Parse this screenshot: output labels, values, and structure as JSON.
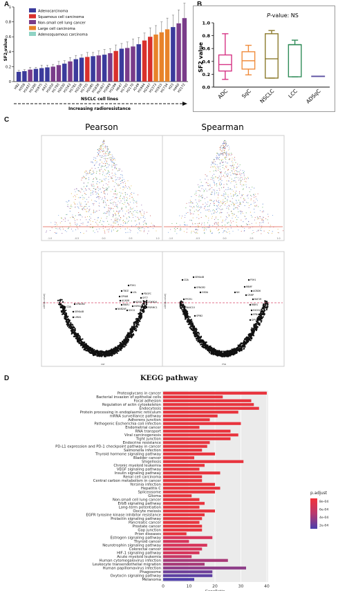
{
  "panels": {
    "a": "A",
    "b": "B",
    "c": "C",
    "d": "D"
  },
  "panel_a": {
    "ylabel": "SF2 value",
    "xlabel": "NSCLC cell lines",
    "arrow_label": "Increasing radioresistance",
    "ylim": [
      0,
      1.0
    ],
    "yticks": [
      "0",
      "0.2",
      "0.4",
      "0.6",
      "0.8",
      "1"
    ],
    "legend": [
      {
        "label": "Adenocarcinoma",
        "color": "#3b3b9c"
      },
      {
        "label": "Squamous cell carcinoma",
        "color": "#d9302c"
      },
      {
        "label": "Non-small cell lung cancer",
        "color": "#7a3c8a"
      },
      {
        "label": "Large cell carcinoma",
        "color": "#e8832a"
      },
      {
        "label": "Adenosquamous carcinoma",
        "color": "#8fd3c4"
      }
    ]
  },
  "chart_data": [
    {
      "type": "bar",
      "categories": [
        "H82",
        "H358",
        "H1437",
        "H1395",
        "H1975",
        "A427",
        "H1650",
        "H1793",
        "H2030",
        "H1563",
        "H1781",
        "H2228",
        "H1755",
        "H2085",
        "H1838",
        "Hcc827",
        "H1869",
        "H1299",
        "H647",
        "H1703",
        "H2170",
        "A549",
        "H1944",
        "H2347",
        "H1373",
        "H1915",
        "H1734",
        "H23",
        "H460",
        "H2172"
      ],
      "values": [
        0.13,
        0.14,
        0.16,
        0.17,
        0.18,
        0.19,
        0.2,
        0.22,
        0.24,
        0.27,
        0.3,
        0.32,
        0.33,
        0.34,
        0.35,
        0.36,
        0.38,
        0.41,
        0.44,
        0.45,
        0.47,
        0.5,
        0.55,
        0.6,
        0.63,
        0.66,
        0.7,
        0.73,
        0.78,
        0.85
      ],
      "errors": [
        0.02,
        0.02,
        0.03,
        0.02,
        0.04,
        0.03,
        0.03,
        0.05,
        0.04,
        0.05,
        0.05,
        0.04,
        0.06,
        0.05,
        0.06,
        0.07,
        0.06,
        0.08,
        0.07,
        0.08,
        0.1,
        0.09,
        0.1,
        0.12,
        0.12,
        0.14,
        0.15,
        0.16,
        0.18,
        0.2
      ],
      "colors": [
        "#3b3b9c",
        "#3b3b9c",
        "#7a3c8a",
        "#3b3b9c",
        "#3b3b9c",
        "#3b3b9c",
        "#7a3c8a",
        "#7a3c8a",
        "#3b3b9c",
        "#7a3c8a",
        "#3b3b9c",
        "#3b3b9c",
        "#d9302c",
        "#3b3b9c",
        "#7a3c8a",
        "#3b3b9c",
        "#7a3c8a",
        "#d9302c",
        "#3b3b9c",
        "#7a3c8a",
        "#7a3c8a",
        "#3b3b9c",
        "#d9302c",
        "#d9302c",
        "#e8832a",
        "#e8832a",
        "#e8832a",
        "#3b3b9c",
        "#7a3c8a",
        "#7a3c8a"
      ],
      "ylabel": "SF2 value",
      "xlabel": "NSCLC cell lines",
      "ylim": [
        0,
        1.0
      ]
    },
    {
      "type": "box",
      "title_prefix": "P",
      "title": "-value: NS",
      "ylabel": "SF2 value",
      "ylim": [
        0,
        1.0
      ],
      "yticks": [
        "0.0",
        "0.2",
        "0.4",
        "0.6",
        "0.8",
        "1.0"
      ],
      "categories": [
        "ADC",
        "SqC",
        "NSCLC",
        "LCC",
        "ADSqC"
      ],
      "colors": [
        "#d63384",
        "#f08c3c",
        "#8c7a2c",
        "#2e8b57",
        "#5b4fa0"
      ],
      "boxes": [
        {
          "min": 0.12,
          "q1": 0.25,
          "median": 0.35,
          "q3": 0.5,
          "max": 0.83
        },
        {
          "min": 0.19,
          "q1": 0.28,
          "median": 0.41,
          "q3": 0.55,
          "max": 0.65
        },
        {
          "min": 0.14,
          "q1": 0.14,
          "median": 0.44,
          "q3": 0.83,
          "max": 0.88
        },
        {
          "min": 0.16,
          "q1": 0.16,
          "median": 0.66,
          "q3": 0.66,
          "max": 0.73
        },
        {
          "min": 0.17,
          "q1": 0.17,
          "median": 0.17,
          "q3": 0.17,
          "max": 0.17
        }
      ]
    },
    {
      "type": "bar",
      "orientation": "horizontal",
      "title": "KEGG pathway",
      "xlabel": "GeneRatio",
      "xlim": [
        0,
        40
      ],
      "xticks": [
        "0",
        "10",
        "20",
        "30",
        "40"
      ],
      "legend_title": "p.adjust",
      "legend_ticks": [
        "8e-04",
        "6e-04",
        "4e-04",
        "2e-04"
      ],
      "categories": [
        "Proteoglycans in cancer",
        "Bacterial invasion of epithelial cells",
        "Focal adhesion",
        "Regulation of actin cytoskeleton",
        "Endocytosis",
        "Protein processing in endoplasmic reticulum",
        "mRNA surveillance pathway",
        "Adherens junction",
        "Pathogenic Escherichia coli infection",
        "Endometrial cancer",
        "RNA transport",
        "Viral carcinogenesis",
        "Tight junction",
        "Endocrine resistance",
        "PD-L1 expression and PD-1 checkpoint pathway in cancer",
        "Salmonella infection",
        "Thyroid hormone signaling pathway",
        "Bladder cancer",
        "Shigellosis",
        "Chronic myeloid leukemia",
        "VEGF signaling pathway",
        "Insulin signaling pathway",
        "Renal cell carcinoma",
        "Central carbon metabolism in cancer",
        "Yersinia infection",
        "Hepatitis C",
        "Spliceosome",
        "Glioma",
        "Non-small cell lung cancer",
        "ErbB signaling pathway",
        "Long-term potentiation",
        "Oocyte meiosis",
        "EGFR tyrosine kinase inhibitor resistance",
        "Prolactin signaling pathway",
        "Pancreatic cancer",
        "Prostate cancer",
        "Gap junction",
        "Prion diseases",
        "Estrogen signaling pathway",
        "Thyroid cancer",
        "Neurotrophin signaling pathway",
        "Colorectal cancer",
        "HIF-1 signaling pathway",
        "Acute myeloid leukemia",
        "Human cytomegalovirus infection",
        "Leukocyte transendothelial migration",
        "Human papillomavirus infection",
        "Phagosome",
        "Oxytocin signaling pathway",
        "Melanoma"
      ],
      "values": [
        40,
        23,
        34,
        35,
        37,
        29,
        21,
        18,
        30,
        14,
        26,
        29,
        26,
        18,
        17,
        15,
        20,
        12,
        31,
        16,
        14,
        22,
        15,
        15,
        20,
        22,
        20,
        11,
        14,
        16,
        14,
        20,
        16,
        15,
        14,
        15,
        15,
        9,
        19,
        10,
        17,
        15,
        14,
        11,
        25,
        16,
        32,
        19,
        19,
        12
      ],
      "colors": [
        "#e8333d",
        "#e8333d",
        "#e8333d",
        "#e8333d",
        "#e8333d",
        "#e8333d",
        "#e8333d",
        "#e8333d",
        "#e8333d",
        "#e8333d",
        "#e8333d",
        "#e8333d",
        "#e8333d",
        "#e8333d",
        "#e8333d",
        "#e8333d",
        "#e8333d",
        "#e8333d",
        "#e8333d",
        "#e8333d",
        "#e8333d",
        "#e8333d",
        "#e8333d",
        "#e8333d",
        "#e8333d",
        "#e8333d",
        "#e8333d",
        "#e8333d",
        "#e8333d",
        "#e8333d",
        "#e8333d",
        "#e8333d",
        "#e8333d",
        "#e8333d",
        "#e8333d",
        "#e8333d",
        "#e8333d",
        "#e8333d",
        "#d7345a",
        "#d7345a",
        "#d7345a",
        "#d7345a",
        "#d7345a",
        "#c73766",
        "#a83a78",
        "#a83a78",
        "#8d3d88",
        "#6f3f98",
        "#5d41a3",
        "#5040aa"
      ]
    }
  ],
  "panel_c": {
    "pearson_title": "Pearson",
    "spearman_title": "Spearman",
    "volcano_ylabel": "-LOG(p-value)",
    "pearson_xlabel": "cor",
    "spearman_xlabel": "rho",
    "scatter_ticks": [
      "-1.0",
      "-0.5",
      "0.0",
      "0.5",
      "1.0"
    ],
    "pearson_genes": [
      "CDA",
      "SYNGR2",
      "SEMA4B",
      "LIMA1",
      "P3H1",
      "TBCE",
      "LOL",
      "CRYAB",
      "ACAD8",
      "RBM1",
      "NAB2AF",
      "PDGFC",
      "SYT7",
      "KDSR",
      "HSPA2",
      "SOCG",
      "CDKN2A",
      "PGRMC1"
    ],
    "spearman_genes": [
      "CDA",
      "SEMA4B",
      "SYNGR2",
      "GSDA",
      "PYCR1",
      "SNAIC10",
      "SPIN2",
      "P3H1",
      "RBMF",
      "ACBD6",
      "NX",
      "CRMP",
      "RAF2R",
      "RBM1",
      "EXOS1",
      "EPB41L2",
      "DPY19L1"
    ]
  }
}
